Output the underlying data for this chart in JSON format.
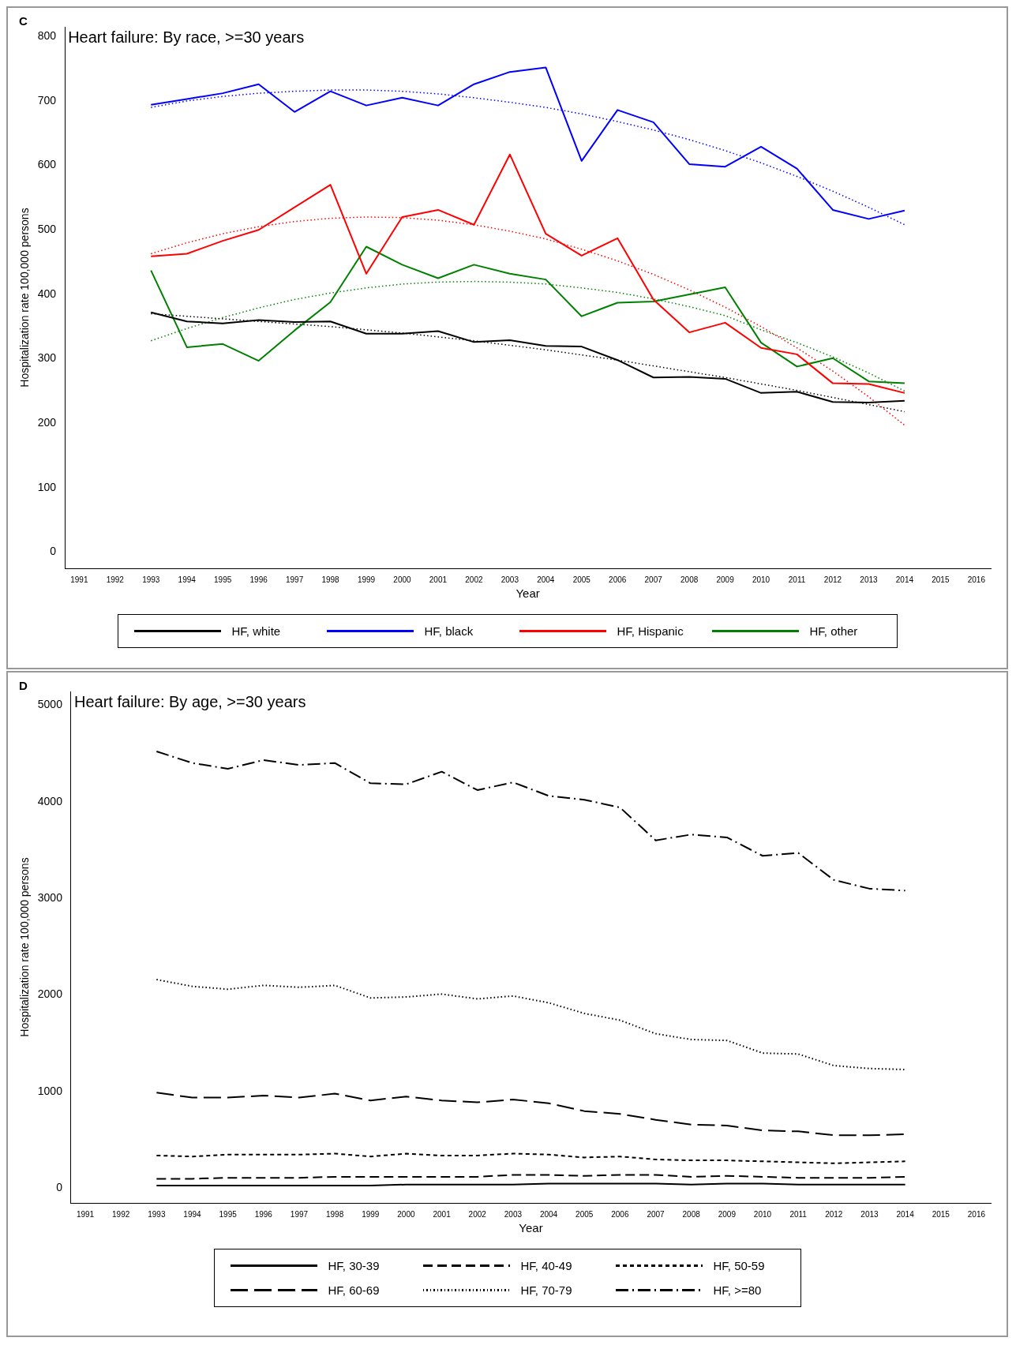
{
  "chart_data": [
    {
      "type": "line",
      "title": "Heart failure: By race, >=30 years",
      "annotations": [
        "C"
      ],
      "xlabel": "Year",
      "ylabel": "Hospitalization rate 100,000 persons",
      "x": [
        1993,
        1994,
        1995,
        1996,
        1997,
        1998,
        1999,
        2000,
        2001,
        2002,
        2003,
        2004,
        2005,
        2006,
        2007,
        2008,
        2009,
        2010,
        2011,
        2012,
        2013,
        2014
      ],
      "xlim": [
        1990.6,
        2016.4
      ],
      "xticks": [
        1991,
        1992,
        1993,
        1994,
        1995,
        1996,
        1997,
        1998,
        1999,
        2000,
        2001,
        2002,
        2003,
        2004,
        2005,
        2006,
        2007,
        2008,
        2009,
        2010,
        2011,
        2012,
        2013,
        2014,
        2015,
        2016
      ],
      "ylim": [
        -25,
        815
      ],
      "yticks": [
        0,
        100,
        200,
        300,
        400,
        500,
        600,
        700,
        800
      ],
      "grid": false,
      "legend": "bottom",
      "marker": "none",
      "series": [
        {
          "name": "HF, white",
          "color": "#000000",
          "line_style": "solid",
          "values": [
            372,
            358,
            355,
            360,
            357,
            358,
            339,
            339,
            343,
            326,
            329,
            320,
            319,
            298,
            271,
            272,
            269,
            247,
            249,
            233,
            232,
            235
          ]
        },
        {
          "name": "HF, black",
          "color": "#0000ff",
          "line_style": "solid",
          "values": [
            694,
            703,
            712,
            726,
            683,
            715,
            693,
            705,
            693,
            726,
            745,
            752,
            607,
            686,
            667,
            602,
            598,
            629,
            595,
            531,
            517,
            530
          ]
        },
        {
          "name": "HF, Hispanic",
          "color": "#ff0000",
          "line_style": "solid",
          "values": [
            459,
            463,
            483,
            500,
            535,
            570,
            432,
            520,
            531,
            508,
            617,
            494,
            460,
            487,
            392,
            341,
            356,
            317,
            307,
            262,
            261,
            247
          ]
        },
        {
          "name": "HF, other",
          "color": "#008000",
          "line_style": "solid",
          "values": [
            437,
            318,
            323,
            297,
            344,
            388,
            474,
            446,
            425,
            446,
            432,
            423,
            366,
            387,
            389,
            400,
            411,
            325,
            288,
            301,
            265,
            262
          ]
        },
        {
          "color": "#000000",
          "line_style": "dotted",
          "values": [
            370,
            366,
            362,
            358,
            354,
            350,
            345,
            340,
            334,
            328,
            321,
            314,
            306,
            298,
            289,
            280,
            271,
            261,
            251,
            240,
            229,
            218
          ]
        },
        {
          "color": "#0000ff",
          "line_style": "dotted",
          "values": [
            690,
            700,
            707,
            712,
            715,
            717,
            717,
            715,
            711,
            705,
            698,
            690,
            680,
            668,
            655,
            640,
            623,
            604,
            583,
            560,
            535,
            508
          ]
        },
        {
          "color": "#ff0000",
          "line_style": "dotted",
          "values": [
            463,
            480,
            494,
            505,
            513,
            518,
            520,
            519,
            515,
            508,
            498,
            486,
            470,
            452,
            431,
            407,
            380,
            350,
            317,
            281,
            241,
            197
          ]
        },
        {
          "color": "#008000",
          "line_style": "dotted",
          "values": [
            328,
            347,
            364,
            379,
            392,
            402,
            410,
            416,
            419,
            420,
            419,
            416,
            410,
            403,
            393,
            381,
            367,
            345,
            325,
            303,
            278,
            250
          ]
        }
      ]
    },
    {
      "type": "line",
      "title": "Heart failure: By age, >=30 years",
      "annotations": [
        "D"
      ],
      "xlabel": "Year",
      "ylabel": "Hospitalization rate 100,000 persons",
      "x": [
        1993,
        1994,
        1995,
        1996,
        1997,
        1998,
        1999,
        2000,
        2001,
        2002,
        2003,
        2004,
        2005,
        2006,
        2007,
        2008,
        2009,
        2010,
        2011,
        2012,
        2013,
        2014
      ],
      "xlim": [
        1990.6,
        2016.4
      ],
      "xticks": [
        1991,
        1992,
        1993,
        1994,
        1995,
        1996,
        1997,
        1998,
        1999,
        2000,
        2001,
        2002,
        2003,
        2004,
        2005,
        2006,
        2007,
        2008,
        2009,
        2010,
        2011,
        2012,
        2013,
        2014,
        2015,
        2016
      ],
      "ylim": [
        -150,
        5140
      ],
      "yticks": [
        0,
        1000,
        2000,
        3000,
        4000,
        5000
      ],
      "grid": false,
      "legend": "bottom",
      "marker": "none",
      "series": [
        {
          "name": "HF, 30-39",
          "color": "#000000",
          "line_style": "solid",
          "values": [
            30,
            30,
            30,
            30,
            30,
            30,
            30,
            40,
            40,
            40,
            40,
            50,
            50,
            50,
            50,
            40,
            50,
            50,
            40,
            40,
            40,
            40
          ]
        },
        {
          "name": "HF, 40-49",
          "color": "#000000",
          "line_style": "dashed",
          "values": [
            100,
            100,
            110,
            110,
            110,
            120,
            120,
            120,
            120,
            120,
            140,
            140,
            130,
            140,
            140,
            120,
            130,
            120,
            110,
            110,
            110,
            120
          ]
        },
        {
          "name": "HF, 50-59",
          "color": "#000000",
          "line_style": "shortdash",
          "values": [
            340,
            330,
            350,
            350,
            350,
            360,
            330,
            360,
            340,
            340,
            360,
            350,
            320,
            330,
            300,
            290,
            290,
            280,
            270,
            260,
            270,
            280
          ]
        },
        {
          "name": "HF, 60-69",
          "color": "#000000",
          "line_style": "longdash",
          "values": [
            990,
            940,
            940,
            960,
            940,
            980,
            910,
            950,
            910,
            890,
            920,
            880,
            800,
            770,
            710,
            660,
            650,
            600,
            590,
            550,
            550,
            560
          ]
        },
        {
          "name": "HF, 70-79",
          "color": "#000000",
          "line_style": "dotted",
          "values": [
            2160,
            2090,
            2060,
            2100,
            2080,
            2100,
            1970,
            1980,
            2010,
            1960,
            1990,
            1920,
            1810,
            1740,
            1600,
            1540,
            1530,
            1400,
            1390,
            1270,
            1240,
            1230
          ]
        },
        {
          "name": "HF, >=80",
          "color": "#000000",
          "line_style": "dashdot",
          "values": [
            4520,
            4400,
            4340,
            4430,
            4380,
            4400,
            4190,
            4180,
            4310,
            4120,
            4200,
            4060,
            4020,
            3940,
            3600,
            3660,
            3630,
            3440,
            3470,
            3190,
            3100,
            3080
          ]
        }
      ]
    }
  ]
}
